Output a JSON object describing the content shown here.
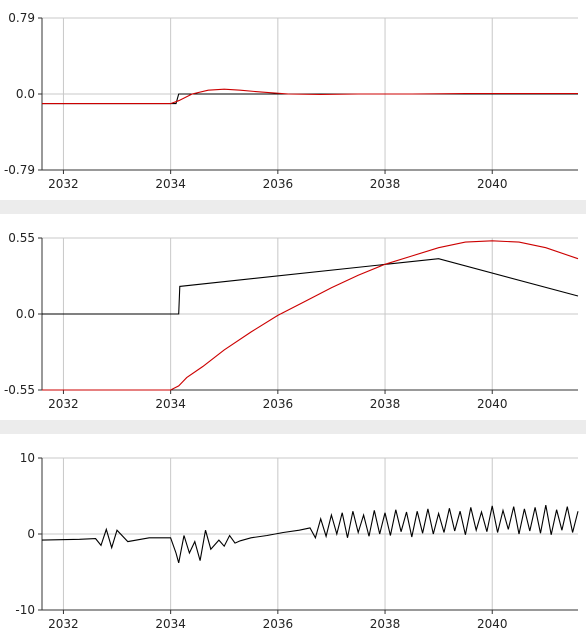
{
  "chart_data": [
    {
      "type": "line",
      "title": "",
      "xlabel": "",
      "ylabel": "",
      "xlim": [
        2031.6,
        2041.6
      ],
      "ylim": [
        -0.79,
        0.79
      ],
      "xticks": [
        2032,
        2034,
        2036,
        2038,
        2040
      ],
      "xtick_labels": [
        "2032",
        "2034",
        "2036",
        "2038",
        "2040"
      ],
      "yticks": [
        0.79,
        0.0,
        -0.79
      ],
      "ytick_labels": [
        "0.79",
        "0.0",
        "-0.79"
      ],
      "grid": true,
      "series": [
        {
          "color": "#000000",
          "x": [
            2031.6,
            2034.1,
            2034.15,
            2041.6
          ],
          "y": [
            -0.1,
            -0.1,
            0.0,
            0.0
          ]
        },
        {
          "color": "#cc0000",
          "x": [
            2031.6,
            2032.4,
            2033.2,
            2034.0,
            2034.15,
            2034.4,
            2034.7,
            2035.0,
            2035.3,
            2035.7,
            2036.2,
            2036.8,
            2037.5,
            2038.5,
            2039.5,
            2040.5,
            2041.6
          ],
          "y": [
            -0.1,
            -0.1,
            -0.1,
            -0.1,
            -0.07,
            0.0,
            0.04,
            0.05,
            0.04,
            0.02,
            0.0,
            -0.005,
            0.0,
            0.0,
            0.005,
            0.005,
            0.005
          ]
        }
      ]
    },
    {
      "type": "line",
      "title": "",
      "xlabel": "",
      "ylabel": "",
      "xlim": [
        2031.6,
        2041.6
      ],
      "ylim": [
        -0.55,
        0.55
      ],
      "xticks": [
        2032,
        2034,
        2036,
        2038,
        2040
      ],
      "xtick_labels": [
        "2032",
        "2034",
        "2036",
        "2038",
        "2040"
      ],
      "yticks": [
        0.55,
        0.0,
        -0.55
      ],
      "ytick_labels": [
        "0.55",
        "0.0",
        "-0.55"
      ],
      "grid": true,
      "series": [
        {
          "color": "#000000",
          "x": [
            2031.6,
            2034.15,
            2034.17,
            2039.0,
            2041.6
          ],
          "y": [
            0.0,
            0.0,
            0.2,
            0.4,
            0.13
          ]
        },
        {
          "color": "#cc0000",
          "x": [
            2031.6,
            2033.0,
            2034.0,
            2034.15,
            2034.3,
            2034.6,
            2035.0,
            2035.5,
            2036.0,
            2036.5,
            2037.0,
            2037.5,
            2038.0,
            2038.5,
            2039.0,
            2039.5,
            2040.0,
            2040.5,
            2041.0,
            2041.6
          ],
          "y": [
            -0.55,
            -0.55,
            -0.55,
            -0.52,
            -0.46,
            -0.38,
            -0.26,
            -0.13,
            -0.01,
            0.09,
            0.19,
            0.28,
            0.36,
            0.42,
            0.48,
            0.52,
            0.53,
            0.52,
            0.48,
            0.4
          ]
        }
      ]
    },
    {
      "type": "line",
      "title": "",
      "xlabel": "",
      "ylabel": "",
      "xlim": [
        2031.6,
        2041.6
      ],
      "ylim": [
        -10,
        10
      ],
      "xticks": [
        2032,
        2034,
        2036,
        2038,
        2040
      ],
      "xtick_labels": [
        "2032",
        "2034",
        "2036",
        "2038",
        "2040"
      ],
      "yticks": [
        10,
        0,
        -10
      ],
      "ytick_labels": [
        "10",
        "0",
        "-10"
      ],
      "grid": true,
      "series": [
        {
          "color": "#000000",
          "x": [
            2031.6,
            2032.3,
            2032.6,
            2032.7,
            2032.8,
            2032.9,
            2033.0,
            2033.2,
            2033.6,
            2034.0,
            2034.1,
            2034.15,
            2034.25,
            2034.35,
            2034.45,
            2034.55,
            2034.65,
            2034.75,
            2034.9,
            2035.0,
            2035.1,
            2035.2,
            2035.3,
            2035.5,
            2035.8,
            2036.1,
            2036.4,
            2036.6,
            2036.7,
            2036.8,
            2036.9,
            2037.0,
            2037.1,
            2037.2,
            2037.3,
            2037.4,
            2037.5,
            2037.6,
            2037.7,
            2037.8,
            2037.9,
            2038.0,
            2038.1,
            2038.2,
            2038.3,
            2038.4,
            2038.5,
            2038.6,
            2038.7,
            2038.8,
            2038.9,
            2039.0,
            2039.1,
            2039.2,
            2039.3,
            2039.4,
            2039.5,
            2039.6,
            2039.7,
            2039.8,
            2039.9,
            2040.0,
            2040.1,
            2040.2,
            2040.3,
            2040.4,
            2040.5,
            2040.6,
            2040.7,
            2040.8,
            2040.9,
            2041.0,
            2041.1,
            2041.2,
            2041.3,
            2041.4,
            2041.5,
            2041.6
          ],
          "y": [
            -0.8,
            -0.7,
            -0.6,
            -1.5,
            0.6,
            -1.8,
            0.5,
            -1.0,
            -0.5,
            -0.5,
            -2.5,
            -3.8,
            -0.2,
            -2.5,
            -1.0,
            -3.5,
            0.5,
            -2.0,
            -0.8,
            -1.6,
            -0.2,
            -1.2,
            -0.9,
            -0.5,
            -0.2,
            0.2,
            0.5,
            0.8,
            -0.5,
            2.0,
            -0.3,
            2.5,
            0.0,
            2.8,
            -0.5,
            3.0,
            0.2,
            2.5,
            -0.3,
            3.1,
            0.0,
            2.8,
            -0.2,
            3.2,
            0.3,
            2.9,
            -0.4,
            3.0,
            0.1,
            3.3,
            0.0,
            2.7,
            0.2,
            3.4,
            0.4,
            3.0,
            -0.1,
            3.5,
            0.5,
            2.9,
            0.3,
            3.7,
            0.2,
            3.1,
            0.6,
            3.6,
            0.0,
            3.3,
            0.4,
            3.5,
            0.1,
            3.8,
            -0.1,
            3.2,
            0.5,
            3.6,
            0.2,
            3.0
          ]
        }
      ]
    }
  ]
}
